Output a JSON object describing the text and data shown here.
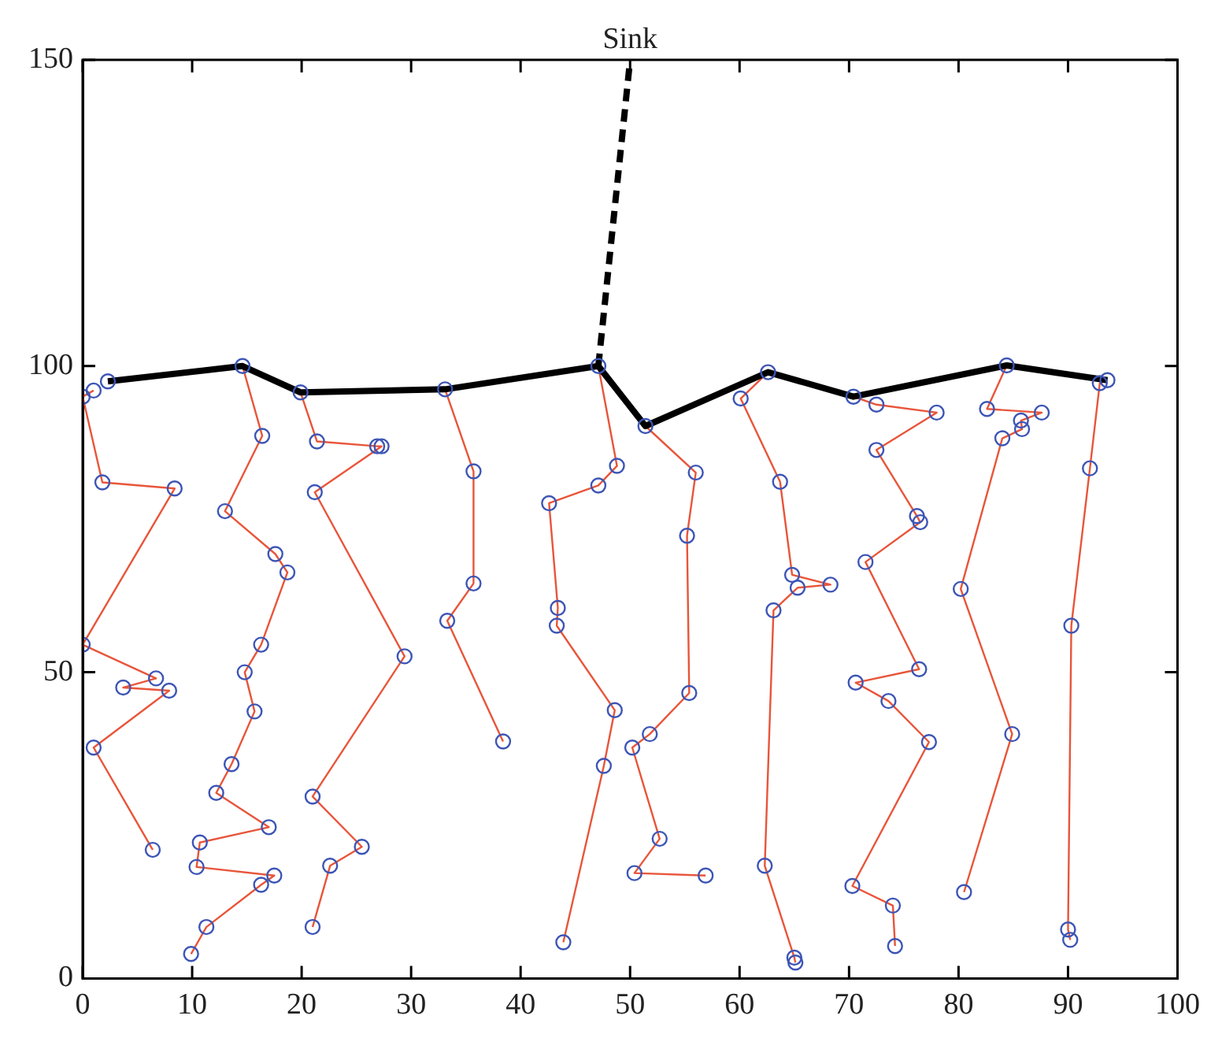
{
  "chart_data": {
    "type": "line",
    "xlim": [
      0,
      100
    ],
    "xticks": [
      0,
      10,
      20,
      30,
      40,
      50,
      60,
      70,
      80,
      90,
      100
    ],
    "ylim": [
      0,
      150
    ],
    "yticks": [
      0,
      50,
      100,
      150
    ],
    "grid": false,
    "legend": false,
    "annotations": [
      {
        "text": "Sink",
        "x": 50,
        "y": 150
      }
    ],
    "series": [
      {
        "color": "#000000",
        "x": [
          2.3,
          14.6,
          19.9,
          33.1,
          47.1,
          51.4,
          62.6,
          70.4,
          84.4,
          93.6
        ],
        "values": [
          97.5,
          100,
          95.7,
          96.2,
          100,
          90.2,
          99,
          95,
          100.1,
          97.7
        ]
      },
      {
        "color": "#000000",
        "line_style": "dashed",
        "x": [
          47.1,
          50
        ],
        "values": [
          100,
          150
        ]
      },
      {
        "color": "#e8553a",
        "x": [
          1,
          0,
          1.8,
          8.4,
          0,
          6.7,
          3.7,
          7.9,
          1,
          6.4
        ],
        "values": [
          96,
          95,
          81,
          80,
          54.5,
          49,
          47.5,
          47,
          37.7,
          21
        ]
      },
      {
        "color": "#e8553a",
        "x": [
          14.6,
          16.4,
          13,
          17.6,
          18.7,
          16.3,
          14.8,
          15.7,
          13.6,
          12.2,
          17,
          10.7,
          10.4,
          17.5,
          16.3,
          11.3,
          9.9
        ],
        "values": [
          100,
          88.6,
          76.3,
          69.3,
          66.3,
          54.5,
          50,
          43.6,
          35,
          30.3,
          24.7,
          22.2,
          18.2,
          16.8,
          15.3,
          8.4,
          4
        ]
      },
      {
        "color": "#e8553a",
        "x": [
          19.9,
          21.4,
          26.9,
          27.3,
          21.2,
          29.4,
          21,
          25.5,
          22.6,
          21
        ],
        "values": [
          95.7,
          87.7,
          86.9,
          86.9,
          79.4,
          52.6,
          29.7,
          21.5,
          18.4,
          8.4
        ]
      },
      {
        "color": "#e8553a",
        "x": [
          33.1,
          35.7,
          35.7,
          33.3,
          38.4
        ],
        "values": [
          96.2,
          82.8,
          64.5,
          58.4,
          38.7
        ]
      },
      {
        "color": "#e8553a",
        "x": [
          47.1,
          48.8,
          47.1,
          42.6,
          43.4,
          43.3,
          48.6,
          47.6,
          43.9
        ],
        "values": [
          100,
          83.7,
          80.5,
          77.6,
          60.5,
          57.6,
          43.8,
          34.7,
          5.9
        ]
      },
      {
        "color": "#e8553a",
        "x": [
          51.4,
          56,
          55.2,
          55.4,
          51.8,
          50.2,
          52.7,
          50.4,
          56.9
        ],
        "values": [
          90.2,
          82.6,
          72.3,
          46.6,
          39.9,
          37.7,
          22.8,
          17.2,
          16.8
        ]
      },
      {
        "color": "#e8553a",
        "x": [
          62.6,
          60.1,
          63.7,
          64.8,
          68.3,
          65.3,
          63.1,
          62.3,
          65,
          65.1
        ],
        "values": [
          99,
          94.7,
          81.1,
          65.9,
          64.3,
          63.8,
          60.1,
          18.4,
          3.4,
          2.6
        ]
      },
      {
        "color": "#e8553a",
        "x": [
          70.4,
          72.5,
          78,
          72.5,
          76.2,
          76.5,
          71.5,
          76.4,
          70.6,
          73.6,
          77.3,
          70.3,
          74,
          74.2
        ],
        "values": [
          95,
          93.7,
          92.4,
          86.3,
          75.5,
          74.5,
          68,
          50.5,
          48.3,
          45.3,
          38.6,
          15.1,
          11.9,
          5.3
        ]
      },
      {
        "color": "#e8553a",
        "x": [
          84.4,
          82.6,
          87.6,
          85.7,
          85.8,
          84,
          80.2,
          84.9,
          80.5
        ],
        "values": [
          100.1,
          93,
          92.4,
          91.1,
          89.7,
          88.2,
          63.6,
          39.9,
          14.1
        ]
      },
      {
        "color": "#e8553a",
        "x": [
          93.6,
          92.9,
          92,
          90.3,
          90,
          90.2
        ],
        "values": [
          97.7,
          97.2,
          83.3,
          57.6,
          8,
          6.3
        ]
      },
      {
        "type": "scatter",
        "marker": "circle",
        "color": "#3d55b5",
        "x": [
          2.3,
          14.6,
          19.9,
          33.1,
          47.1,
          51.4,
          62.6,
          70.4,
          84.4,
          93.6,
          1,
          0,
          1.8,
          8.4,
          0,
          6.7,
          3.7,
          7.9,
          1,
          6.4,
          16.4,
          13,
          17.6,
          18.7,
          16.3,
          14.8,
          15.7,
          13.6,
          12.2,
          17,
          10.7,
          10.4,
          17.5,
          16.3,
          11.3,
          9.9,
          21.4,
          26.9,
          27.3,
          21.2,
          29.4,
          21,
          25.5,
          22.6,
          21,
          35.7,
          35.7,
          33.3,
          38.4,
          48.8,
          47.1,
          42.6,
          43.4,
          43.3,
          48.6,
          47.6,
          43.9,
          56,
          55.2,
          55.4,
          51.8,
          50.2,
          52.7,
          50.4,
          56.9,
          60.1,
          63.7,
          64.8,
          68.3,
          65.3,
          63.1,
          62.3,
          65,
          65.1,
          72.5,
          78,
          72.5,
          76.2,
          76.5,
          71.5,
          76.4,
          70.6,
          73.6,
          77.3,
          70.3,
          74,
          74.2,
          82.6,
          87.6,
          85.7,
          85.8,
          84,
          80.2,
          84.9,
          80.5,
          92.9,
          92,
          90.3,
          90,
          90.2
        ],
        "values": [
          97.5,
          100,
          95.7,
          96.2,
          100,
          90.2,
          99,
          95,
          100.1,
          97.7,
          96,
          95,
          81,
          80,
          54.5,
          49,
          47.5,
          47,
          37.7,
          21,
          88.6,
          76.3,
          69.3,
          66.3,
          54.5,
          50,
          43.6,
          35,
          30.3,
          24.7,
          22.2,
          18.2,
          16.8,
          15.3,
          8.4,
          4,
          87.7,
          86.9,
          86.9,
          79.4,
          52.6,
          29.7,
          21.5,
          18.4,
          8.4,
          82.8,
          64.5,
          58.4,
          38.7,
          83.7,
          80.5,
          77.6,
          60.5,
          57.6,
          43.8,
          34.7,
          5.9,
          82.6,
          72.3,
          46.6,
          39.9,
          37.7,
          22.8,
          17.2,
          16.8,
          94.7,
          81.1,
          65.9,
          64.3,
          63.8,
          60.1,
          18.4,
          3.4,
          2.6,
          93.7,
          92.4,
          86.3,
          75.5,
          74.5,
          68,
          50.5,
          48.3,
          45.3,
          38.6,
          15.1,
          11.9,
          5.3,
          93,
          92.4,
          91.1,
          89.7,
          88.2,
          63.6,
          39.9,
          14.1,
          97.2,
          83.3,
          57.6,
          8,
          6.3
        ]
      }
    ]
  }
}
